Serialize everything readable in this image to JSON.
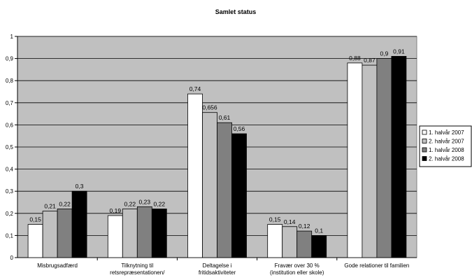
{
  "chart_data": {
    "type": "bar",
    "title": "Samlet status",
    "xlabel": "",
    "ylabel": "",
    "ylim": [
      0,
      1
    ],
    "yticks": [
      "0",
      "0,1",
      "0,2",
      "0,3",
      "0,4",
      "0,5",
      "0,6",
      "0,7",
      "0,8",
      "0,9",
      "1"
    ],
    "grid": true,
    "legend_position": "right",
    "categories": [
      [
        "Misbrugsadfærd"
      ],
      [
        "Tilknytning til",
        "retsrepræsentationen/"
      ],
      [
        "Deltagelse i",
        "fritidsaktiviteter"
      ],
      [
        "Fravær over 30 %",
        "(institution eller skole)"
      ],
      [
        "Gode relationer til familien"
      ]
    ],
    "series": [
      {
        "name": "1. halvår 2007",
        "color": "#ffffff",
        "values": [
          0.15,
          0.19,
          0.74,
          0.15,
          0.88
        ],
        "labels": [
          "0,15",
          "0,19",
          "0,74",
          "0,15",
          "0,88"
        ]
      },
      {
        "name": "2. halvår 2007",
        "color": "#c0c0c0",
        "values": [
          0.21,
          0.22,
          0.656,
          0.14,
          0.87
        ],
        "labels": [
          "0,21",
          "0,22",
          "0,656",
          "0,14",
          "0,87"
        ]
      },
      {
        "name": "1. halvår 2008",
        "color": "#808080",
        "values": [
          0.22,
          0.23,
          0.61,
          0.12,
          0.9
        ],
        "labels": [
          "0,22",
          "0,23",
          "0,61",
          "0,12",
          "0,9"
        ]
      },
      {
        "name": "2. halvår 2008",
        "color": "#000000",
        "values": [
          0.3,
          0.22,
          0.56,
          0.1,
          0.91
        ],
        "labels": [
          "0,3",
          "0,22",
          "0,56",
          "0,1",
          "0,91"
        ]
      }
    ],
    "plot_background": "#c0c0c0",
    "gridline_color": "#000000"
  }
}
